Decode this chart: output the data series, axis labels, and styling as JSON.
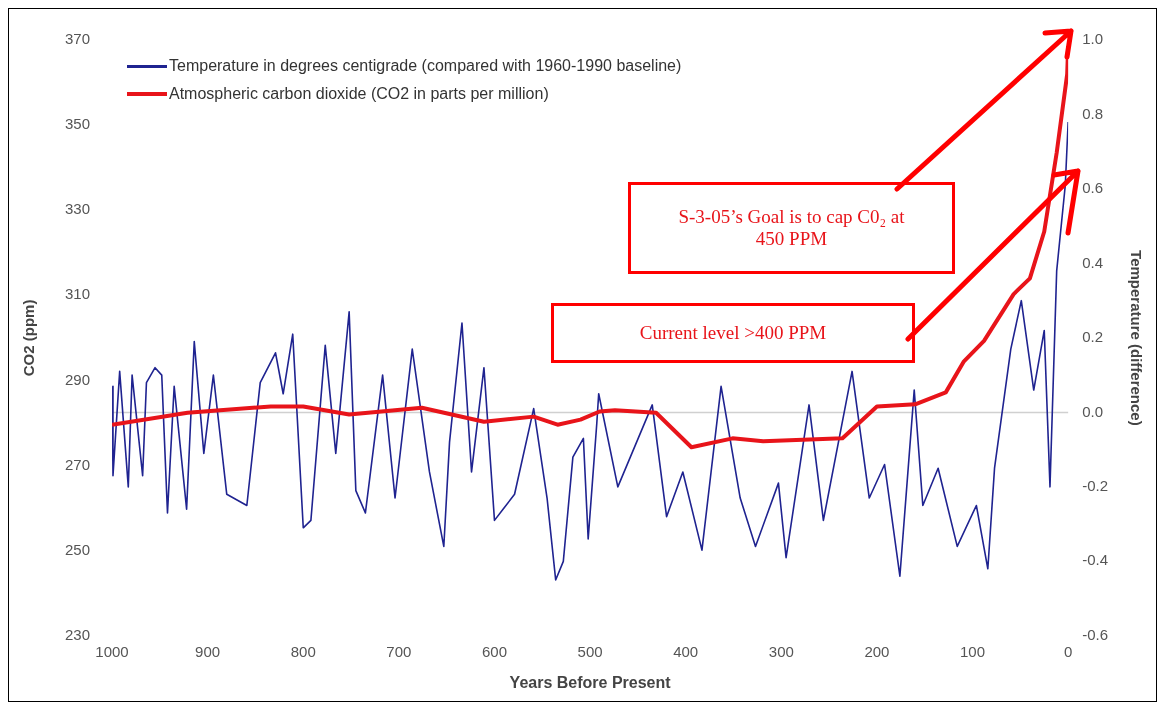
{
  "chart_data": {
    "type": "line",
    "xlabel": "Years Before Present",
    "ylabel": "CO2 (ppm)",
    "y2label": "Temperature (difference)",
    "xlim": [
      1000,
      0
    ],
    "xticks": [
      1000,
      900,
      800,
      700,
      600,
      500,
      400,
      300,
      200,
      100,
      0
    ],
    "ylim": [
      230,
      370
    ],
    "yticks": [
      230,
      250,
      270,
      290,
      310,
      330,
      350,
      370
    ],
    "y2lim": [
      -0.6,
      1.0
    ],
    "y2ticks": [
      {
        "value": -0.6,
        "label": "-0.6"
      },
      {
        "value": -0.4,
        "label": "-0.4"
      },
      {
        "value": -0.2,
        "label": "-0.2"
      },
      {
        "value": 0,
        "label": "0.0"
      },
      {
        "value": 0.2,
        "label": "0.2"
      },
      {
        "value": 0.4,
        "label": "0.4"
      },
      {
        "value": 0.6,
        "label": "0.6"
      },
      {
        "value": 0.8,
        "label": "0.8"
      },
      {
        "value": 1.0,
        "label": "1.0"
      }
    ],
    "grid": false,
    "legend": "top left",
    "marker": "none",
    "line_style": "solid",
    "ref_lines": [
      {
        "axis": "y2",
        "value": 0,
        "color": "#d0d0d0"
      }
    ],
    "series": [
      {
        "name": "Temperature in degrees centigrade (compared with 1960-1990 baseline)",
        "color": "#1f2390",
        "axis": "y2",
        "x": [
          1000,
          999,
          992,
          983,
          979,
          968,
          964,
          955,
          948,
          942,
          935,
          922,
          914,
          904,
          894,
          880,
          859,
          845,
          829,
          821,
          811,
          800,
          792,
          777,
          766,
          752,
          745,
          735,
          717,
          704,
          686,
          668,
          653,
          647,
          634,
          624,
          611,
          600,
          579,
          559,
          545,
          536,
          528,
          518,
          507,
          502,
          493,
          491,
          471,
          435,
          420,
          403,
          383,
          363,
          343,
          327,
          303,
          295,
          271,
          256,
          226,
          208,
          192,
          176,
          161,
          152,
          136,
          116,
          96,
          84,
          77,
          60,
          49,
          36,
          25,
          19,
          12,
          3,
          0
        ],
        "values": [
          0.07,
          -0.17,
          0.11,
          -0.2,
          0.1,
          -0.17,
          0.08,
          0.12,
          0.1,
          -0.27,
          0.07,
          -0.26,
          0.19,
          -0.11,
          0.1,
          -0.22,
          -0.25,
          0.08,
          0.16,
          0.05,
          0.21,
          -0.31,
          -0.29,
          0.18,
          -0.11,
          0.27,
          -0.21,
          -0.27,
          0.1,
          -0.23,
          0.17,
          -0.16,
          -0.36,
          -0.08,
          0.24,
          -0.16,
          0.12,
          -0.29,
          -0.22,
          0.01,
          -0.23,
          -0.45,
          -0.4,
          -0.12,
          -0.07,
          -0.34,
          -0.03,
          0.05,
          -0.2,
          0.02,
          -0.28,
          -0.16,
          -0.37,
          0.07,
          -0.23,
          -0.36,
          -0.19,
          -0.39,
          0.02,
          -0.29,
          0.11,
          -0.23,
          -0.14,
          -0.44,
          0.06,
          -0.25,
          -0.15,
          -0.36,
          -0.25,
          -0.42,
          -0.15,
          0.17,
          0.3,
          0.06,
          0.22,
          -0.2,
          0.38,
          0.61,
          0.78
        ]
      },
      {
        "name": "Atmospheric carbon dioxide (CO2 in parts per million)",
        "color": "#e8141a",
        "axis": "y",
        "x": [
          1000,
          921,
          834,
          800,
          752,
          676,
          611,
          559,
          534,
          510,
          490,
          474,
          431,
          394,
          351,
          319,
          236,
          200,
          160,
          128,
          109,
          88,
          57,
          40,
          25,
          12,
          1,
          0
        ],
        "values": [
          279.6,
          282.4,
          283.9,
          283.9,
          282,
          283.6,
          280.3,
          281.5,
          279.6,
          280.8,
          282.7,
          283,
          282.4,
          274.3,
          276.4,
          275.7,
          276.4,
          283.9,
          284.4,
          287.2,
          294.5,
          299.3,
          310.3,
          314,
          325,
          343.5,
          362,
          368.6
        ]
      }
    ],
    "annotations": [
      "S-3-05’s Goal is to cap C0₂ at 450 PPM",
      "Current level >400 PPM"
    ]
  }
}
